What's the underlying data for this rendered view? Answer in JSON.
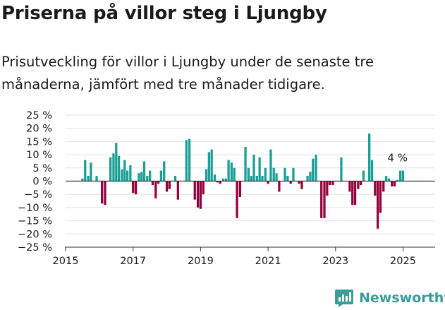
{
  "title": "Priserna på villor steg i Ljungby",
  "subtitle": "Prisutveckling för villor i Ljungby under de senaste tre månaderna, jämfört med tre månader tidigare.",
  "brand": {
    "name": "Newsworthy",
    "icon": "newsworthy-logo-icon"
  },
  "colors": {
    "positive": "#1a9e95",
    "negative": "#96003c",
    "zero_line": "#333333",
    "grid": "#e3e3e3"
  },
  "chart_data": {
    "type": "bar",
    "title": "",
    "xlabel": "",
    "ylabel": "",
    "ylim": [
      -25,
      25
    ],
    "yticks": [
      25,
      20,
      15,
      10,
      5,
      0,
      -5,
      -10,
      -15,
      -20,
      -25
    ],
    "ytick_labels": [
      "25 %",
      "20 %",
      "15 %",
      "10 %",
      "5 %",
      "0 %",
      "−5 %",
      "−10 %",
      "−15 %",
      "−20 %",
      "−25 %"
    ],
    "xlim": [
      2015,
      2025.7
    ],
    "xticks": [
      2015,
      2017,
      2019,
      2021,
      2023,
      2025
    ],
    "xtick_labels": [
      "2015",
      "2017",
      "2019",
      "2021",
      "2023",
      "2025"
    ],
    "grid": "horizontal",
    "annotation": {
      "text": "4 %",
      "x": 2024.9,
      "y": 4
    },
    "x": [
      2015.5,
      2015.58,
      2015.67,
      2015.75,
      2015.83,
      2015.92,
      2016.0,
      2016.08,
      2016.17,
      2016.25,
      2016.33,
      2016.42,
      2016.5,
      2016.58,
      2016.67,
      2016.75,
      2016.83,
      2016.92,
      2017.0,
      2017.08,
      2017.17,
      2017.25,
      2017.33,
      2017.42,
      2017.5,
      2017.58,
      2017.67,
      2017.75,
      2017.83,
      2017.92,
      2018.0,
      2018.08,
      2018.17,
      2018.25,
      2018.33,
      2018.42,
      2018.5,
      2018.58,
      2018.67,
      2018.75,
      2018.83,
      2018.92,
      2019.0,
      2019.08,
      2019.17,
      2019.25,
      2019.33,
      2019.42,
      2019.5,
      2019.58,
      2019.67,
      2019.75,
      2019.83,
      2019.92,
      2020.0,
      2020.08,
      2020.17,
      2020.25,
      2020.33,
      2020.42,
      2020.5,
      2020.58,
      2020.67,
      2020.75,
      2020.83,
      2020.92,
      2021.0,
      2021.08,
      2021.17,
      2021.25,
      2021.33,
      2021.42,
      2021.5,
      2021.58,
      2021.67,
      2021.75,
      2021.83,
      2021.92,
      2022.0,
      2022.08,
      2022.17,
      2022.25,
      2022.33,
      2022.42,
      2022.5,
      2022.58,
      2022.67,
      2022.75,
      2022.83,
      2022.92,
      2023.0,
      2023.08,
      2023.17,
      2023.25,
      2023.33,
      2023.42,
      2023.5,
      2023.58,
      2023.67,
      2023.75,
      2023.83,
      2023.92,
      2024.0,
      2024.08,
      2024.17,
      2024.25,
      2024.33,
      2024.42,
      2024.5,
      2024.58,
      2024.67,
      2024.75,
      2024.83,
      2024.92,
      2025.0
    ],
    "values": [
      1,
      8,
      2,
      7,
      0,
      2,
      0,
      -8.5,
      -9,
      0,
      9,
      10.5,
      14.5,
      9.5,
      4.5,
      8,
      4,
      6,
      -4.5,
      -5,
      3,
      3.5,
      7.5,
      2,
      4,
      -1.5,
      -6.5,
      -1,
      4,
      7.5,
      -4,
      -3,
      0,
      2,
      -7,
      0,
      0,
      15.5,
      16,
      0,
      -7,
      -10,
      -10.5,
      -5,
      4.5,
      11,
      12,
      2.5,
      -0.5,
      -1,
      1,
      1,
      8,
      7,
      5,
      -14,
      -6,
      0,
      13,
      5,
      2,
      10,
      2,
      9,
      2,
      5,
      -1,
      12,
      5,
      3,
      -4,
      0,
      5,
      2,
      -1,
      5,
      0,
      -1,
      -3,
      0,
      2,
      3.5,
      8.5,
      10,
      0,
      -14,
      -14,
      -5.5,
      -1.5,
      -1.5,
      0,
      0,
      9,
      0,
      0,
      -4,
      -9,
      -9,
      -3,
      -1.5,
      4,
      0,
      18,
      8,
      -5.5,
      -18,
      -12,
      -4,
      2,
      1,
      -2,
      -2,
      0.5,
      4,
      4
    ]
  }
}
